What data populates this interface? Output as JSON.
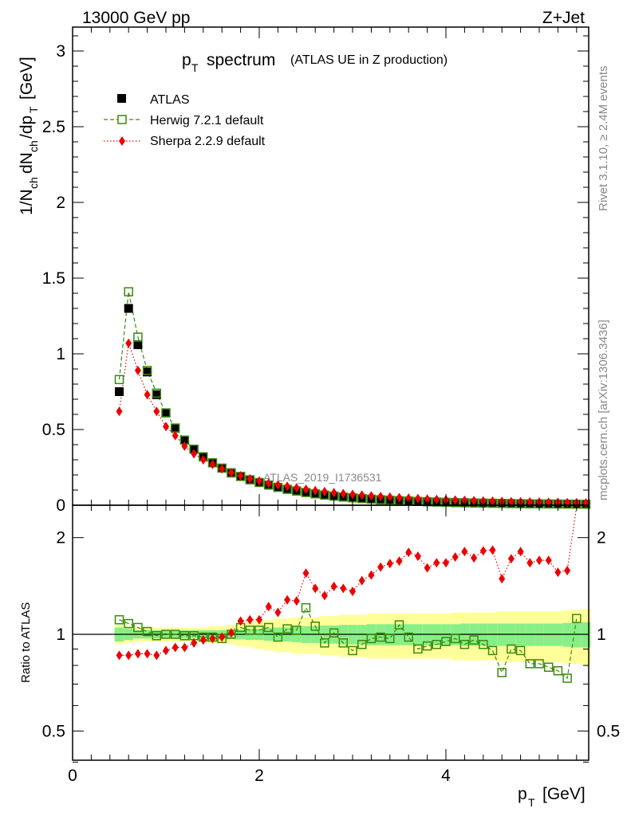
{
  "header": {
    "left": "13000 GeV pp",
    "right": "Z+Jet",
    "title_main": "p",
    "title_sub": "T",
    "title_rest": "spectrum",
    "title_paren": "(ATLAS UE in Z production)"
  },
  "side": {
    "rivet": "Rivet 3.1.10, ≥ 2.4M events",
    "mcplots": "mcplots.cern.ch [arXiv:1306.3436]"
  },
  "watermark": "ATLAS_2019_I1736531",
  "legend": [
    {
      "label": "ATLAS",
      "color": "#000000",
      "marker": "filled-square"
    },
    {
      "label": "Herwig 7.2.1 default",
      "color": "#3a8a0a",
      "marker": "open-square",
      "line": "dashed"
    },
    {
      "label": "Sherpa 2.2.9 default",
      "color": "#ee0000",
      "marker": "diamond",
      "line": "dotted"
    }
  ],
  "y_top_label": "1/N_ch dN_ch/dp_T [GeV]",
  "y_bottom_label": "Ratio to ATLAS",
  "x_label": "p_T [GeV]",
  "x_ticks": [
    "0",
    "2",
    "4"
  ],
  "y_top_ticks": [
    "0",
    "0.5",
    "1",
    "1.5",
    "2",
    "2.5",
    "3"
  ],
  "y_bottom_ticks": [
    "0.5",
    "1",
    "2"
  ],
  "chart_data": [
    {
      "type": "scatter",
      "panel": "main",
      "xlim": [
        0,
        5.55
      ],
      "ylim": [
        0,
        3.17
      ],
      "x": [
        0.5,
        0.6,
        0.7,
        0.8,
        0.9,
        1.0,
        1.1,
        1.2,
        1.3,
        1.4,
        1.5,
        1.6,
        1.7,
        1.8,
        1.9,
        2.0,
        2.1,
        2.2,
        2.3,
        2.4,
        2.5,
        2.6,
        2.7,
        2.8,
        2.9,
        3.0,
        3.1,
        3.2,
        3.3,
        3.4,
        3.5,
        3.6,
        3.7,
        3.8,
        3.9,
        4.0,
        4.1,
        4.2,
        4.3,
        4.4,
        4.5,
        4.6,
        4.7,
        4.8,
        4.9,
        5.0,
        5.1,
        5.2,
        5.3,
        5.4,
        5.5
      ],
      "series": [
        {
          "name": "ATLAS",
          "values": [
            0.75,
            1.3,
            1.06,
            0.88,
            0.73,
            0.61,
            0.51,
            0.43,
            0.37,
            0.32,
            0.28,
            0.245,
            0.215,
            0.19,
            0.168,
            0.15,
            0.133,
            0.118,
            0.105,
            0.094,
            0.084,
            0.075,
            0.067,
            0.06,
            0.054,
            0.049,
            0.044,
            0.04,
            0.036,
            0.033,
            0.03,
            0.027,
            0.025,
            0.023,
            0.021,
            0.019,
            0.017,
            0.016,
            0.015,
            0.014,
            0.013,
            0.012,
            0.011,
            0.01,
            0.0095,
            0.009,
            0.0085,
            0.008,
            0.0075,
            0.007,
            0.0065
          ]
        },
        {
          "name": "Herwig 7.2.1 default",
          "values": [
            0.83,
            1.41,
            1.11,
            0.89,
            0.74,
            0.61,
            0.51,
            0.43,
            0.37,
            0.32,
            0.28,
            0.245,
            0.213,
            0.19,
            0.168,
            0.15,
            0.133,
            0.118,
            0.105,
            0.094,
            0.084,
            0.075,
            0.067,
            0.06,
            0.054,
            0.049,
            0.044,
            0.04,
            0.036,
            0.033,
            0.03,
            0.027,
            0.025,
            0.023,
            0.021,
            0.019,
            0.017,
            0.016,
            0.015,
            0.014,
            0.013,
            0.012,
            0.011,
            0.01,
            0.0095,
            0.009,
            0.0085,
            0.008,
            0.0075,
            0.007,
            0.0065
          ]
        },
        {
          "name": "Sherpa 2.2.9 default",
          "values": [
            0.62,
            1.07,
            0.89,
            0.73,
            0.62,
            0.52,
            0.46,
            0.39,
            0.34,
            0.3,
            0.27,
            0.24,
            0.215,
            0.195,
            0.175,
            0.16,
            0.145,
            0.135,
            0.125,
            0.115,
            0.105,
            0.097,
            0.09,
            0.083,
            0.077,
            0.072,
            0.067,
            0.062,
            0.058,
            0.054,
            0.05,
            0.047,
            0.044,
            0.041,
            0.038,
            0.036,
            0.034,
            0.032,
            0.03,
            0.028,
            0.027,
            0.025,
            0.024,
            0.023,
            0.022,
            0.021,
            0.02,
            0.019,
            0.018,
            0.017,
            0.016
          ]
        }
      ]
    },
    {
      "type": "line",
      "panel": "ratio",
      "y_scale": "log",
      "xlim": [
        0,
        5.55
      ],
      "ylim": [
        0.35,
        2.6
      ],
      "reference": 1.0,
      "x": [
        0.5,
        0.6,
        0.7,
        0.8,
        0.9,
        1.0,
        1.1,
        1.2,
        1.3,
        1.4,
        1.5,
        1.6,
        1.7,
        1.8,
        1.9,
        2.0,
        2.1,
        2.2,
        2.3,
        2.4,
        2.5,
        2.6,
        2.7,
        2.8,
        2.9,
        3.0,
        3.1,
        3.2,
        3.3,
        3.4,
        3.5,
        3.6,
        3.7,
        3.8,
        3.9,
        4.0,
        4.1,
        4.2,
        4.3,
        4.4,
        4.5,
        4.6,
        4.7,
        4.8,
        4.9,
        5.0,
        5.1,
        5.2,
        5.3,
        5.4,
        5.5
      ],
      "band_inner_halfwidth": [
        0.05,
        0.04,
        0.03,
        0.03,
        0.03,
        0.03,
        0.03,
        0.03,
        0.03,
        0.03,
        0.03,
        0.03,
        0.03,
        0.035,
        0.04,
        0.04,
        0.045,
        0.05,
        0.05,
        0.055,
        0.06,
        0.06,
        0.065,
        0.065,
        0.07,
        0.07,
        0.07,
        0.075,
        0.075,
        0.075,
        0.075,
        0.075,
        0.075,
        0.075,
        0.075,
        0.075,
        0.075,
        0.08,
        0.08,
        0.08,
        0.08,
        0.08,
        0.08,
        0.08,
        0.08,
        0.08,
        0.08,
        0.08,
        0.085,
        0.09,
        0.09
      ],
      "band_outer_halfwidth": [
        0.07,
        0.06,
        0.05,
        0.05,
        0.05,
        0.05,
        0.05,
        0.05,
        0.05,
        0.05,
        0.06,
        0.06,
        0.07,
        0.08,
        0.09,
        0.1,
        0.11,
        0.12,
        0.12,
        0.13,
        0.13,
        0.13,
        0.14,
        0.14,
        0.15,
        0.15,
        0.15,
        0.16,
        0.16,
        0.16,
        0.16,
        0.16,
        0.16,
        0.16,
        0.16,
        0.16,
        0.17,
        0.17,
        0.17,
        0.17,
        0.17,
        0.18,
        0.18,
        0.18,
        0.18,
        0.18,
        0.18,
        0.18,
        0.19,
        0.19,
        0.2
      ],
      "series": [
        {
          "name": "Herwig 7.2.1 default",
          "values": [
            1.11,
            1.08,
            1.05,
            1.02,
            0.99,
            1.0,
            1.0,
            0.99,
            0.99,
            0.98,
            0.98,
            0.97,
            1.0,
            1.05,
            1.03,
            1.03,
            1.05,
            0.98,
            1.04,
            1.03,
            1.21,
            1.06,
            0.94,
            1.01,
            0.94,
            0.89,
            0.93,
            0.97,
            0.98,
            0.97,
            1.07,
            0.98,
            0.9,
            0.92,
            0.93,
            0.95,
            0.97,
            0.93,
            0.96,
            0.93,
            0.89,
            0.76,
            0.9,
            0.89,
            0.81,
            0.81,
            0.79,
            0.77,
            0.73,
            1.12,
            1.12
          ]
        },
        {
          "name": "Sherpa 2.2.9 default",
          "values": [
            0.86,
            0.86,
            0.87,
            0.87,
            0.86,
            0.89,
            0.91,
            0.91,
            0.94,
            0.96,
            0.97,
            0.98,
            1.01,
            1.1,
            1.11,
            1.11,
            1.22,
            1.17,
            1.28,
            1.27,
            1.55,
            1.39,
            1.32,
            1.41,
            1.39,
            1.36,
            1.47,
            1.53,
            1.62,
            1.66,
            1.69,
            1.8,
            1.75,
            1.61,
            1.67,
            1.67,
            1.74,
            1.81,
            1.73,
            1.82,
            1.83,
            1.49,
            1.72,
            1.81,
            1.67,
            1.7,
            1.7,
            1.56,
            1.58,
            2.5,
            2.5
          ]
        }
      ]
    }
  ]
}
